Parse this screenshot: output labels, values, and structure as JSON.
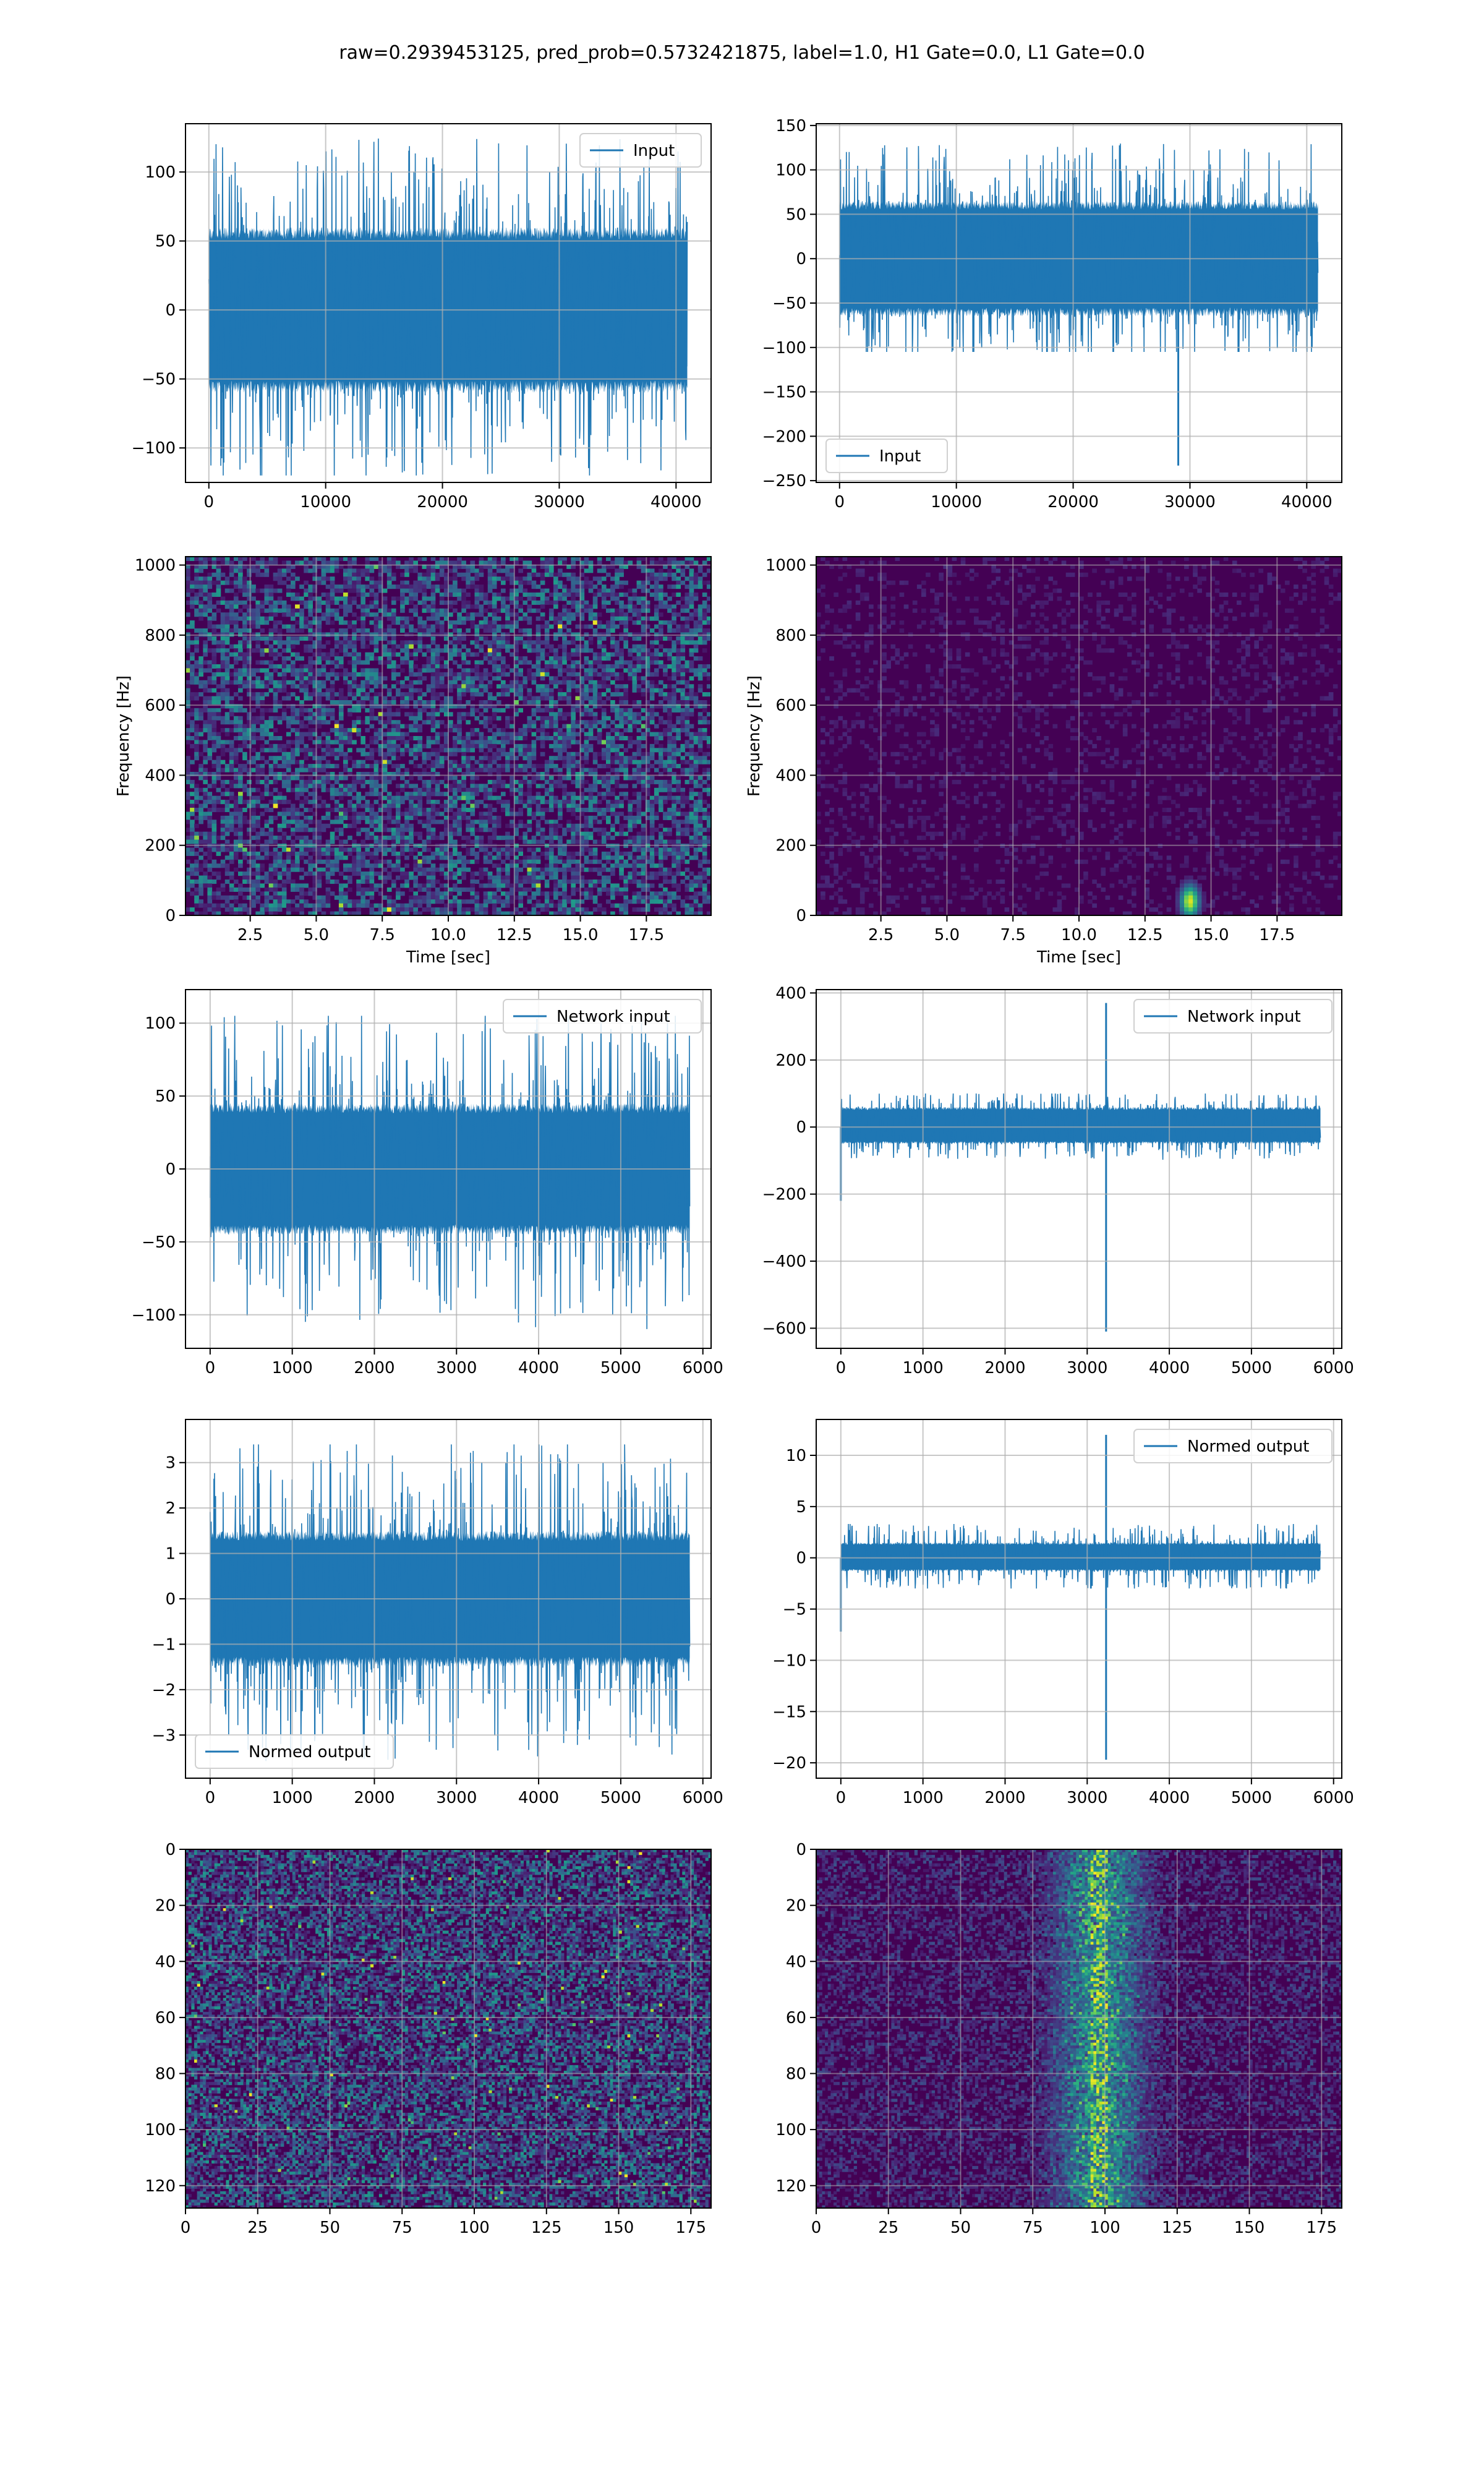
{
  "figure": {
    "title": "raw=0.2939453125, pred_prob=0.5732421875, label=1.0, H1 Gate=0.0, L1 Gate=0.0"
  },
  "colors": {
    "line": "#1f77b4",
    "grid": "#b0b0b0",
    "viridis_dark": "#440154",
    "viridis_mid": "#21918c",
    "viridis_bright": "#fde725"
  },
  "chart_data": [
    {
      "id": "h1-input",
      "type": "line",
      "row": 0,
      "col": 0,
      "legend": "Input",
      "legend_loc": "upper right",
      "xlim": [
        -2000,
        43000
      ],
      "ylim": [
        -125,
        135
      ],
      "xticks": [
        0,
        10000,
        20000,
        30000,
        40000
      ],
      "yticks": [
        -100,
        -50,
        0,
        50,
        100
      ],
      "n_points": 40960,
      "series": [
        {
          "name": "Input",
          "envelope": [
            -60,
            60
          ],
          "extremes": [
            -120,
            125
          ]
        }
      ]
    },
    {
      "id": "l1-input",
      "type": "line",
      "row": 0,
      "col": 1,
      "legend": "Input",
      "legend_loc": "lower left",
      "xlim": [
        -2000,
        43000
      ],
      "ylim": [
        -252,
        152
      ],
      "xticks": [
        0,
        10000,
        20000,
        30000,
        40000
      ],
      "yticks": [
        -250,
        -200,
        -150,
        -100,
        -50,
        0,
        50,
        100,
        150
      ],
      "n_points": 40960,
      "series": [
        {
          "name": "Input",
          "envelope": [
            -65,
            65
          ],
          "extremes": [
            -105,
            130
          ],
          "spikes": [
            {
              "x": 29000,
              "y": -233
            }
          ]
        }
      ]
    },
    {
      "id": "h1-spectrogram",
      "type": "heatmap",
      "row": 1,
      "col": 0,
      "xlabel": "Time [sec]",
      "ylabel": "Frequency [Hz]",
      "xlim": [
        0.05,
        19.95
      ],
      "ylim": [
        0,
        1024
      ],
      "xticks": [
        2.5,
        5.0,
        7.5,
        10.0,
        12.5,
        15.0,
        17.5
      ],
      "yticks": [
        0,
        200,
        400,
        600,
        800,
        1000
      ],
      "colormap": "viridis",
      "texture": "uniform-noise"
    },
    {
      "id": "l1-spectrogram",
      "type": "heatmap",
      "row": 1,
      "col": 1,
      "xlabel": "Time [sec]",
      "ylabel": "Frequency [Hz]",
      "xlim": [
        0.05,
        19.95
      ],
      "ylim": [
        0,
        1024
      ],
      "xticks": [
        2.5,
        5.0,
        7.5,
        10.0,
        12.5,
        15.0,
        17.5
      ],
      "yticks": [
        0,
        200,
        400,
        600,
        800,
        1000
      ],
      "colormap": "viridis",
      "texture": "dark-with-hotspot",
      "hotspot": {
        "time": 14.2,
        "freq": 40
      }
    },
    {
      "id": "h1-network-input",
      "type": "line",
      "row": 2,
      "col": 0,
      "legend": "Network input",
      "legend_loc": "upper right",
      "xlim": [
        -300,
        6100
      ],
      "ylim": [
        -123,
        123
      ],
      "xticks": [
        0,
        1000,
        2000,
        3000,
        4000,
        5000,
        6000
      ],
      "yticks": [
        -100,
        -50,
        0,
        50,
        100
      ],
      "n_points": 5840,
      "series": [
        {
          "name": "Network input",
          "envelope": [
            -45,
            45
          ],
          "extremes": [
            -110,
            105
          ]
        }
      ]
    },
    {
      "id": "l1-network-input",
      "type": "line",
      "row": 2,
      "col": 1,
      "legend": "Network input",
      "legend_loc": "upper right",
      "xlim": [
        -300,
        6100
      ],
      "ylim": [
        -660,
        410
      ],
      "xticks": [
        0,
        1000,
        2000,
        3000,
        4000,
        5000,
        6000
      ],
      "yticks": [
        -600,
        -400,
        -200,
        0,
        200,
        400
      ],
      "n_points": 5840,
      "series": [
        {
          "name": "Network input",
          "envelope": [
            -50,
            60
          ],
          "extremes": [
            -100,
            100
          ],
          "spikes": [
            {
              "x": 3230,
              "y": 370
            },
            {
              "x": 3230,
              "y": -610
            },
            {
              "x": 0,
              "y": -220
            }
          ]
        }
      ]
    },
    {
      "id": "h1-normed-output",
      "type": "line",
      "row": 3,
      "col": 0,
      "legend": "Normed output",
      "legend_loc": "lower left",
      "xlim": [
        -300,
        6100
      ],
      "ylim": [
        -3.95,
        3.95
      ],
      "xticks": [
        0,
        1000,
        2000,
        3000,
        4000,
        5000,
        6000
      ],
      "yticks": [
        -3,
        -2,
        -1,
        0,
        1,
        2,
        3
      ],
      "n_points": 5840,
      "series": [
        {
          "name": "Normed output",
          "envelope": [
            -1.5,
            1.5
          ],
          "extremes": [
            -3.6,
            3.4
          ]
        }
      ]
    },
    {
      "id": "l1-normed-output",
      "type": "line",
      "row": 3,
      "col": 1,
      "legend": "Normed output",
      "legend_loc": "upper right",
      "xlim": [
        -300,
        6100
      ],
      "ylim": [
        -21.5,
        13.5
      ],
      "xticks": [
        0,
        1000,
        2000,
        3000,
        4000,
        5000,
        6000
      ],
      "yticks": [
        -20,
        -15,
        -10,
        -5,
        0,
        5,
        10
      ],
      "n_points": 5840,
      "series": [
        {
          "name": "Normed output",
          "envelope": [
            -1.3,
            1.5
          ],
          "extremes": [
            -3,
            3.3
          ],
          "spikes": [
            {
              "x": 3230,
              "y": 12
            },
            {
              "x": 3230,
              "y": -19.7
            },
            {
              "x": 0,
              "y": -7.2
            }
          ]
        }
      ]
    },
    {
      "id": "h1-feature-map",
      "type": "heatmap",
      "row": 4,
      "col": 0,
      "xlim": [
        0,
        182
      ],
      "ylim": [
        0,
        128
      ],
      "y_inverted": true,
      "xticks": [
        0,
        25,
        50,
        75,
        100,
        125,
        150,
        175
      ],
      "yticks": [
        0,
        20,
        40,
        60,
        80,
        100,
        120
      ],
      "colormap": "viridis",
      "texture": "uniform-noise"
    },
    {
      "id": "l1-feature-map",
      "type": "heatmap",
      "row": 4,
      "col": 1,
      "xlim": [
        0,
        182
      ],
      "ylim": [
        0,
        128
      ],
      "y_inverted": true,
      "xticks": [
        0,
        25,
        50,
        75,
        100,
        125,
        150,
        175
      ],
      "yticks": [
        0,
        20,
        40,
        60,
        80,
        100,
        120
      ],
      "colormap": "viridis",
      "texture": "vertical-band",
      "band_center": 98
    }
  ]
}
